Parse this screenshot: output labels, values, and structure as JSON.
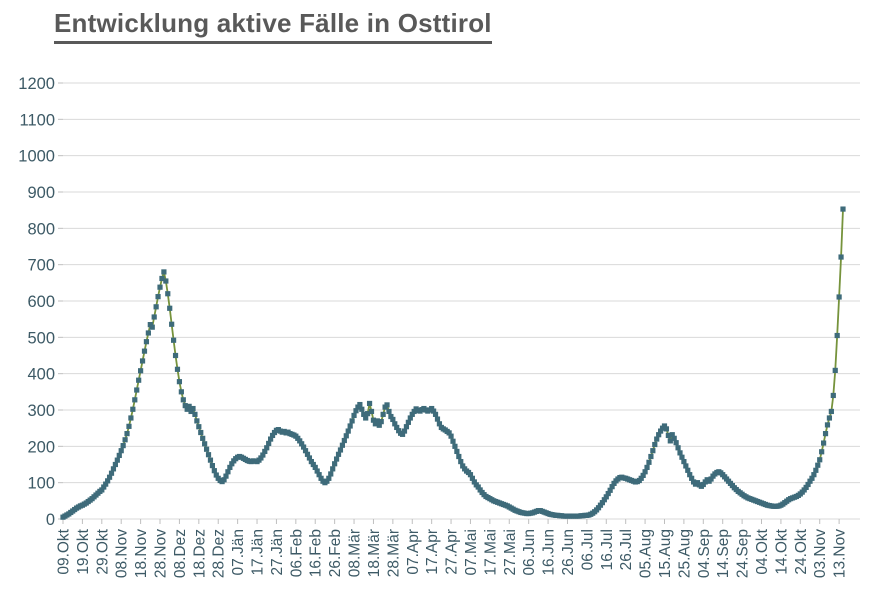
{
  "title": "Entwicklung aktive Fälle in Osttirol",
  "chart_data": {
    "type": "line",
    "title": "Entwicklung aktive Fälle in Osttirol",
    "xlabel": "",
    "ylabel": "",
    "ylim": [
      0,
      1200
    ],
    "y_ticks": [
      0,
      100,
      200,
      300,
      400,
      500,
      600,
      700,
      800,
      900,
      1000,
      1100,
      1200
    ],
    "x_tick_labels": [
      "09.Okt",
      "19.Okt",
      "29.Okt",
      "08.Nov",
      "18.Nov",
      "28.Nov",
      "08.Dez",
      "18.Dez",
      "28.Dez",
      "07.Jän",
      "17.Jän",
      "27.Jän",
      "06.Feb",
      "16.Feb",
      "26.Feb",
      "08.Mär",
      "18.Mär",
      "28.Mär",
      "07.Apr",
      "17.Apr",
      "27.Apr",
      "07.Mai",
      "17.Mai",
      "27.Mai",
      "06.Jun",
      "16.Jun",
      "26.Jun",
      "06.Jul",
      "16.Jul",
      "26.Jul",
      "05.Aug",
      "15.Aug",
      "25.Aug",
      "04.Sep",
      "14.Sep",
      "24.Sep",
      "04.Okt",
      "14.Okt",
      "24.Okt",
      "03.Nov",
      "13.Nov"
    ],
    "tick_interval_days": 10,
    "grid": "horizontal",
    "legend_position": "none",
    "marker_shape": "square",
    "marker_color": "#3e6b7a",
    "line_color": "#76933c",
    "grid_color": "#d9d9d9",
    "tick_color": "#bfbfbf",
    "axis_label_color": "#3d5a66",
    "title_color": "#595959",
    "series": [
      {
        "values": [
          5,
          8,
          11,
          14,
          18,
          22,
          26,
          30,
          33,
          36,
          38,
          41,
          44,
          48,
          52,
          56,
          61,
          66,
          71,
          76,
          80,
          88,
          96,
          105,
          115,
          126,
          138,
          150,
          162,
          175,
          188,
          202,
          218,
          235,
          255,
          278,
          302,
          328,
          355,
          382,
          408,
          435,
          462,
          488,
          512,
          535,
          528,
          556,
          584,
          612,
          638,
          662,
          680,
          655,
          620,
          580,
          536,
          492,
          450,
          412,
          378,
          350,
          328,
          312,
          302,
          310,
          296,
          304,
          288,
          270,
          254,
          238,
          222,
          207,
          192,
          177,
          162,
          147,
          133,
          121,
          112,
          106,
          103,
          108,
          118,
          130,
          142,
          152,
          160,
          166,
          170,
          172,
          170,
          167,
          164,
          161,
          159,
          158,
          160,
          159,
          158,
          162,
          168,
          176,
          186,
          196,
          208,
          220,
          230,
          238,
          244,
          246,
          242,
          239,
          241,
          237,
          239,
          235,
          233,
          231,
          228,
          222,
          215,
          207,
          198,
          188,
          178,
          168,
          158,
          150,
          142,
          132,
          122,
          112,
          104,
          100,
          104,
          112,
          124,
          138,
          152,
          165,
          178,
          190,
          203,
          216,
          229,
          242,
          256,
          270,
          285,
          298,
          308,
          315,
          302,
          288,
          278,
          290,
          318,
          296,
          272,
          262,
          270,
          258,
          268,
          288,
          308,
          314,
          296,
          282,
          274,
          262,
          252,
          243,
          236,
          233,
          242,
          254,
          266,
          278,
          288,
          296,
          303,
          299,
          297,
          301,
          304,
          300,
          297,
          300,
          304,
          297,
          288,
          275,
          262,
          252,
          248,
          245,
          241,
          237,
          228,
          214,
          200,
          186,
          172,
          158,
          146,
          138,
          132,
          128,
          122,
          112,
          102,
          94,
          88,
          80,
          73,
          67,
          62,
          59,
          56,
          53,
          50,
          48,
          46,
          44,
          42,
          40,
          38,
          36,
          33,
          30,
          27,
          24,
          22,
          20,
          18,
          17,
          16,
          15,
          15,
          16,
          17,
          19,
          21,
          23,
          23,
          21,
          19,
          17,
          15,
          13,
          12,
          11,
          10,
          10,
          9,
          9,
          8,
          8,
          8,
          8,
          8,
          8,
          8,
          8,
          8,
          9,
          9,
          10,
          10,
          11,
          13,
          16,
          20,
          25,
          31,
          38,
          45,
          53,
          61,
          70,
          79,
          89,
          98,
          105,
          110,
          114,
          115,
          113,
          112,
          110,
          108,
          106,
          104,
          102,
          103,
          106,
          112,
          120,
          130,
          142,
          156,
          172,
          188,
          205,
          220,
          232,
          242,
          250,
          256,
          248,
          230,
          215,
          232,
          222,
          210,
          196,
          182,
          170,
          158,
          146,
          134,
          122,
          112,
          102,
          96,
          100,
          94,
          90,
          95,
          102,
          108,
          104,
          110,
          118,
          124,
          128,
          130,
          127,
          122,
          116,
          110,
          104,
          98,
          92,
          86,
          81,
          76,
          72,
          68,
          64,
          61,
          58,
          56,
          54,
          52,
          50,
          48,
          46,
          44,
          42,
          40,
          38,
          37,
          36,
          35,
          35,
          35,
          36,
          38,
          41,
          45,
          49,
          53,
          56,
          58,
          60,
          62,
          65,
          69,
          74,
          80,
          87,
          95,
          104,
          112,
          122,
          134,
          148,
          163,
          185,
          209,
          235,
          259,
          278,
          296,
          340,
          409,
          505,
          611,
          721,
          853
        ]
      }
    ]
  }
}
